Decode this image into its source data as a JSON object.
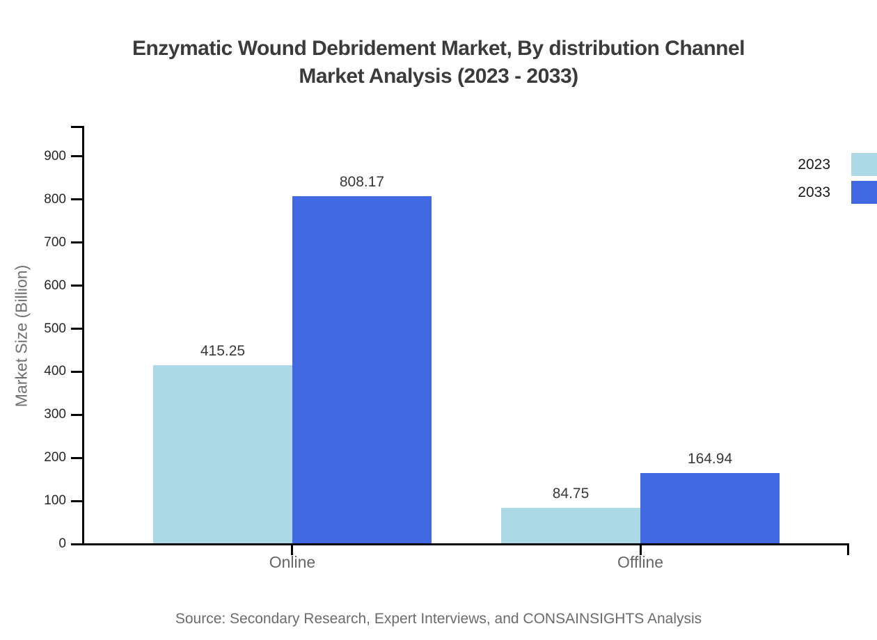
{
  "chart_data": {
    "type": "bar",
    "title": "Enzymatic Wound Debridement Market, By distribution Channel Market Analysis (2023 - 2033)",
    "title_line1": "Enzymatic Wound Debridement Market, By distribution Channel",
    "title_line2": "Market Analysis (2023 - 2033)",
    "categories": [
      "Online",
      "Offline"
    ],
    "series": [
      {
        "name": "2023",
        "color": "#ADD8E6",
        "values": [
          415.25,
          84.75
        ]
      },
      {
        "name": "2033",
        "color": "#4169E1",
        "values": [
          808.17,
          164.94
        ]
      }
    ],
    "xlabel": "",
    "ylabel": "Market Size (Billion)",
    "yticks": [
      0,
      100,
      200,
      300,
      400,
      500,
      600,
      700,
      800,
      900
    ],
    "ylim": [
      0,
      971
    ],
    "grid": false,
    "legend_position": "top-right",
    "value_label_decimals": 2,
    "source": "Source: Secondary Research, Expert Interviews, and CONSAINSIGHTS Analysis"
  }
}
